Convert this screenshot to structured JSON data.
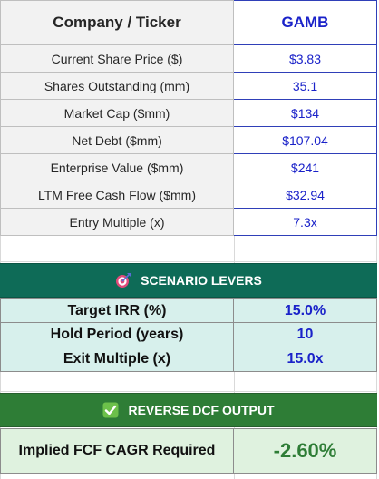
{
  "header": {
    "label": "Company / Ticker",
    "value": "GAMB"
  },
  "inputs": [
    {
      "label": "Current Share Price ($)",
      "value": "$3.83"
    },
    {
      "label": "Shares Outstanding (mm)",
      "value": "35.1"
    },
    {
      "label": "Market Cap ($mm)",
      "value": "$134"
    },
    {
      "label": "Net Debt ($mm)",
      "value": "$107.04"
    },
    {
      "label": "Enterprise Value ($mm)",
      "value": "$241"
    },
    {
      "label": "LTM Free Cash Flow ($mm)",
      "value": "$32.94"
    },
    {
      "label": "Entry Multiple (x)",
      "value": "7.3x"
    }
  ],
  "scenario": {
    "title": "SCENARIO LEVERS",
    "icon": "target-dart-icon",
    "levers": [
      {
        "label": "Target IRR (%)",
        "value": "15.0%"
      },
      {
        "label": "Hold Period (years)",
        "value": "10"
      },
      {
        "label": "Exit Multiple (x)",
        "value": "15.0x"
      }
    ]
  },
  "output": {
    "title": "REVERSE DCF OUTPUT",
    "icon": "check-box-icon",
    "label": "Implied FCF CAGR Required",
    "value": "-2.60%"
  },
  "colors": {
    "input_blue": "#1a22c9",
    "section_teal": "#0e6b57",
    "section_green": "#2e7d36",
    "lever_bg": "#d7f0ec",
    "output_bg": "#dff2df"
  }
}
